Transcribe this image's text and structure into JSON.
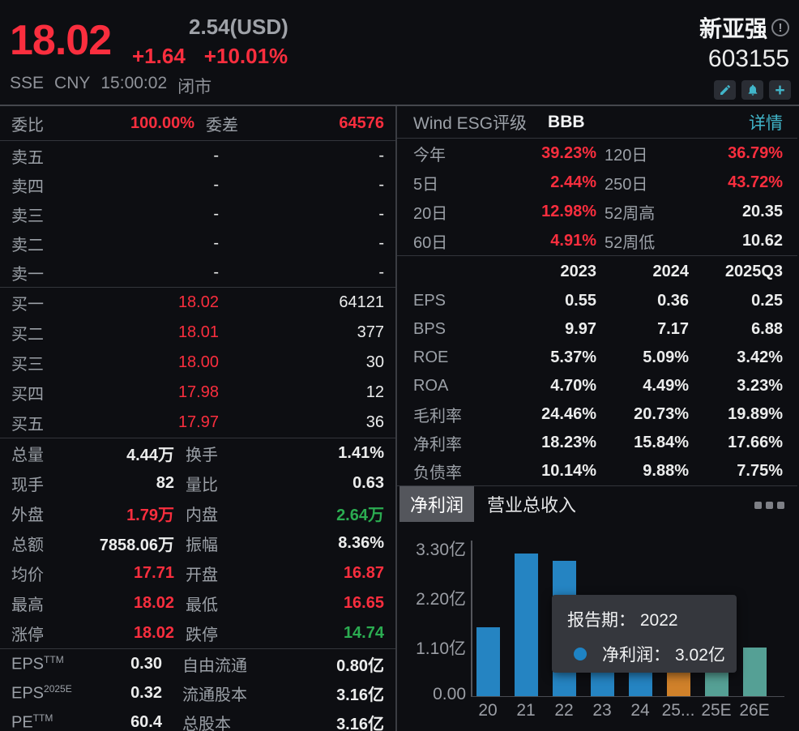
{
  "colors": {
    "red": "#fa2e3e",
    "green": "#2bac51",
    "cyan": "#41b5c9",
    "bar_blue": "#2584c2",
    "bar_orange": "#d0812a",
    "bar_teal": "#55a095"
  },
  "header": {
    "price": "18.02",
    "price_usd": "2.54(USD)",
    "change": "+1.64",
    "change_pct": "+10.01%",
    "name": "新亚强",
    "code": "603155",
    "exchange": "SSE",
    "currency": "CNY",
    "time": "15:00:02",
    "market_status": "闭市",
    "action_icons": [
      "edit",
      "alert",
      "add"
    ]
  },
  "order_book": {
    "summary": {
      "weibi_label": "委比",
      "weibi_value": "100.00%",
      "weicha_label": "委差",
      "weicha_value": "64576"
    },
    "asks": [
      {
        "label": "卖五",
        "price": "-",
        "volume": "-"
      },
      {
        "label": "卖四",
        "price": "-",
        "volume": "-"
      },
      {
        "label": "卖三",
        "price": "-",
        "volume": "-"
      },
      {
        "label": "卖二",
        "price": "-",
        "volume": "-"
      },
      {
        "label": "卖一",
        "price": "-",
        "volume": "-"
      }
    ],
    "bids": [
      {
        "label": "买一",
        "price": "18.02",
        "volume": "64121"
      },
      {
        "label": "买二",
        "price": "18.01",
        "volume": "377"
      },
      {
        "label": "买三",
        "price": "18.00",
        "volume": "30"
      },
      {
        "label": "买四",
        "price": "17.98",
        "volume": "12"
      },
      {
        "label": "买五",
        "price": "17.97",
        "volume": "36"
      }
    ]
  },
  "stats_rows": [
    {
      "l1": "总量",
      "v1": "4.44万",
      "c1": "white",
      "l2": "换手",
      "v2": "1.41%",
      "c2": "white"
    },
    {
      "l1": "现手",
      "v1": "82",
      "c1": "white",
      "l2": "量比",
      "v2": "0.63",
      "c2": "white"
    },
    {
      "l1": "外盘",
      "v1": "1.79万",
      "c1": "red",
      "l2": "内盘",
      "v2": "2.64万",
      "c2": "green"
    },
    {
      "l1": "总额",
      "v1": "7858.06万",
      "c1": "white",
      "l2": "振幅",
      "v2": "8.36%",
      "c2": "white"
    },
    {
      "l1": "均价",
      "v1": "17.71",
      "c1": "red",
      "l2": "开盘",
      "v2": "16.87",
      "c2": "red"
    },
    {
      "l1": "最高",
      "v1": "18.02",
      "c1": "red",
      "l2": "最低",
      "v2": "16.65",
      "c2": "red"
    },
    {
      "l1": "涨停",
      "v1": "18.02",
      "c1": "red",
      "l2": "跌停",
      "v2": "14.74",
      "c2": "green"
    }
  ],
  "fundamental_rows": [
    {
      "l1": "EPS",
      "sup": "TTM",
      "v1": "0.30",
      "l2": "自由流通",
      "v2": "0.80亿"
    },
    {
      "l1": "EPS",
      "sup": "2025E",
      "v1": "0.32",
      "l2": "流通股本",
      "v2": "3.16亿"
    },
    {
      "l1": "PE",
      "sup": "TTM",
      "v1": "60.4",
      "l2": "总股本",
      "v2": "3.16亿"
    }
  ],
  "esg": {
    "label": "Wind ESG评级",
    "rating": "BBB",
    "link": "详情"
  },
  "performance_rows": [
    {
      "l1": "今年",
      "v1": "39.23%",
      "c1": "red",
      "l2": "120日",
      "v2": "36.79%",
      "c2": "red"
    },
    {
      "l1": "5日",
      "v1": "2.44%",
      "c1": "red",
      "l2": "250日",
      "v2": "43.72%",
      "c2": "red"
    },
    {
      "l1": "20日",
      "v1": "12.98%",
      "c1": "red",
      "l2": "52周高",
      "v2": "20.35",
      "c2": "white"
    },
    {
      "l1": "60日",
      "v1": "4.91%",
      "c1": "red",
      "l2": "52周低",
      "v2": "10.62",
      "c2": "white"
    }
  ],
  "financial_table": {
    "headers": [
      "2023",
      "2024",
      "2025Q3"
    ],
    "rows": [
      {
        "label": "EPS",
        "values": [
          "0.55",
          "0.36",
          "0.25"
        ]
      },
      {
        "label": "BPS",
        "values": [
          "9.97",
          "7.17",
          "6.88"
        ]
      },
      {
        "label": "ROE",
        "values": [
          "5.37%",
          "5.09%",
          "3.42%"
        ]
      },
      {
        "label": "ROA",
        "values": [
          "4.70%",
          "4.49%",
          "3.23%"
        ]
      },
      {
        "label": "毛利率",
        "values": [
          "24.46%",
          "20.73%",
          "19.89%"
        ]
      },
      {
        "label": "净利率",
        "values": [
          "18.23%",
          "15.84%",
          "17.66%"
        ]
      },
      {
        "label": "负债率",
        "values": [
          "10.14%",
          "9.88%",
          "7.75%"
        ]
      }
    ]
  },
  "chart_tabs": {
    "selected": "净利润",
    "other": "营业总收入"
  },
  "tooltip": {
    "line1_label": "报告期：",
    "line1_value": "2022",
    "line2_label": "净利润：",
    "line2_value": "3.02亿"
  },
  "chart_data": {
    "type": "bar",
    "title": "净利润",
    "categories": [
      "20",
      "21",
      "22",
      "23",
      "24",
      "25...",
      "25E",
      "26E"
    ],
    "values": [
      1.54,
      3.18,
      3.02,
      1.73,
      1.14,
      0.95,
      1.0,
      1.09
    ],
    "unit": "亿",
    "bar_colors": [
      "#2584c2",
      "#2584c2",
      "#2584c2",
      "#2584c2",
      "#2584c2",
      "#d0812a",
      "#55a095",
      "#55a095"
    ],
    "ytick_labels": [
      "3.30亿",
      "2.20亿",
      "1.10亿",
      "0.00"
    ],
    "ytick_values": [
      3.3,
      2.2,
      1.1,
      0
    ],
    "ylim": [
      0,
      3.3
    ],
    "legend_position": "none",
    "grid": false
  }
}
